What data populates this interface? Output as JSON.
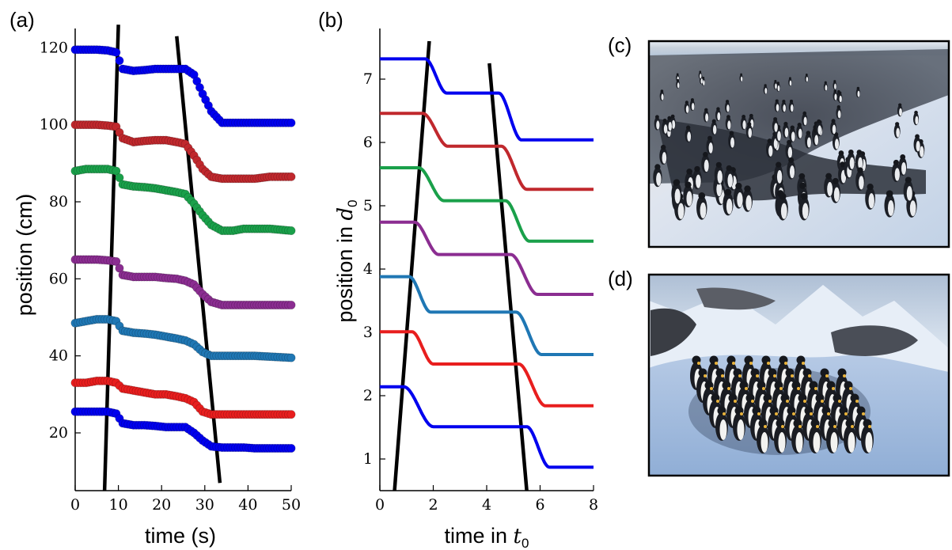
{
  "panel_labels": {
    "a": "(a)",
    "b": "(b)",
    "c": "(c)",
    "d": "(d)"
  },
  "axes_text": {
    "a_xlabel": "time (s)",
    "a_ylabel": "position (cm)",
    "b_xlabel_prefix": "time in ",
    "b_xlabel_symbol": "t",
    "b_xlabel_sub": "0",
    "b_ylabel_prefix": "position in ",
    "b_ylabel_symbol": "d",
    "b_ylabel_sub": "0"
  },
  "photos": {
    "c_description_icon": "penguin-colony-photo",
    "d_description_icon": "penguin-huddle-render"
  },
  "chart_data": [
    {
      "id": "a",
      "type": "scatter",
      "title": "",
      "xlabel": "time (s)",
      "ylabel": "position (cm)",
      "xlim": [
        0,
        50
      ],
      "ylim": [
        5,
        125
      ],
      "xticks": [
        0,
        10,
        20,
        30,
        40,
        50
      ],
      "yticks": [
        20,
        40,
        60,
        80,
        100,
        120
      ],
      "grid": false,
      "series": [
        {
          "color": "#0000ee",
          "y": [
            119.5,
            119.5,
            119.5,
            119.3,
            118.8,
            114.5,
            114.0,
            114.2,
            114.5,
            114.5,
            114.5,
            114.5,
            113.0,
            108.0,
            103.5,
            100.5,
            100.5,
            100.5,
            100.5,
            100.5,
            100.5
          ]
        },
        {
          "color": "#c0282d",
          "y": [
            100.0,
            100.0,
            100.0,
            99.8,
            99.5,
            96.5,
            95.5,
            95.8,
            96.0,
            96.0,
            95.5,
            95.0,
            92.0,
            88.5,
            86.5,
            86.0,
            86.0,
            86.0,
            86.0,
            86.5,
            86.5
          ]
        },
        {
          "color": "#1aa04a",
          "y": [
            88.0,
            88.5,
            88.5,
            88.5,
            88.0,
            84.5,
            84.0,
            83.8,
            83.5,
            83.0,
            82.5,
            82.0,
            79.5,
            76.5,
            74.0,
            72.5,
            72.5,
            73.0,
            73.0,
            73.0,
            72.5
          ]
        },
        {
          "color": "#8b2d91",
          "y": [
            65.0,
            65.0,
            65.0,
            64.8,
            64.5,
            61.0,
            60.5,
            60.5,
            60.5,
            60.2,
            60.0,
            59.5,
            58.5,
            56.0,
            54.0,
            53.2,
            53.2,
            53.2,
            53.2,
            53.2,
            53.2
          ]
        },
        {
          "color": "#1f77b4",
          "y": [
            48.5,
            49.0,
            49.5,
            49.5,
            49.0,
            46.5,
            46.0,
            45.8,
            45.5,
            45.0,
            44.5,
            44.0,
            43.0,
            41.0,
            40.0,
            40.0,
            40.0,
            40.0,
            40.0,
            39.8,
            39.5
          ]
        },
        {
          "color": "#e81e1e",
          "y": [
            33.0,
            33.0,
            33.5,
            33.5,
            33.0,
            31.5,
            31.0,
            30.5,
            30.0,
            30.0,
            29.5,
            29.0,
            28.0,
            25.5,
            24.8,
            24.8,
            24.8,
            24.8,
            24.8,
            24.8,
            24.8
          ]
        },
        {
          "color": "#0000ee",
          "y": [
            25.5,
            25.5,
            25.5,
            25.5,
            25.0,
            22.5,
            22.0,
            22.0,
            21.8,
            21.5,
            21.5,
            21.5,
            20.0,
            18.0,
            16.5,
            16.2,
            16.2,
            16.2,
            16.0,
            16.0,
            16.0
          ]
        }
      ],
      "x": [
        0,
        2.5,
        5,
        7.5,
        9.5,
        11,
        13.5,
        16,
        18.5,
        21,
        23.5,
        25.5,
        27.5,
        29.5,
        31.5,
        34,
        36.5,
        39,
        41.5,
        45,
        50
      ],
      "waves": [
        {
          "x_top": 10.0,
          "y_top": 126,
          "x_bottom": 6.8,
          "y_bottom": 5
        },
        {
          "x_top": 23.5,
          "y_top": 123,
          "x_bottom": 33.5,
          "y_bottom": 7
        }
      ]
    },
    {
      "id": "b",
      "type": "line",
      "title": "",
      "xlabel": "time in t0",
      "ylabel": "position in d0",
      "xlim": [
        0,
        8
      ],
      "ylim": [
        0.5,
        7.8
      ],
      "xticks": [
        0,
        2,
        4,
        6,
        8
      ],
      "yticks": [
        1,
        2,
        3,
        4,
        5,
        6,
        7
      ],
      "grid": false,
      "series": [
        {
          "color": "#0000ee",
          "start": 7.32,
          "mid": 6.78,
          "end": 6.04,
          "t1": 1.7,
          "t1e": 2.5,
          "t2": 4.45,
          "t2e": 5.3
        },
        {
          "color": "#c0282d",
          "start": 6.46,
          "mid": 5.94,
          "end": 5.26,
          "t1": 1.6,
          "t1e": 2.55,
          "t2": 4.55,
          "t2e": 5.5
        },
        {
          "color": "#1aa04a",
          "start": 5.6,
          "mid": 5.08,
          "end": 4.44,
          "t1": 1.45,
          "t1e": 2.4,
          "t2": 4.7,
          "t2e": 5.6
        },
        {
          "color": "#8b2d91",
          "start": 4.74,
          "mid": 4.23,
          "end": 3.6,
          "t1": 1.3,
          "t1e": 2.2,
          "t2": 4.9,
          "t2e": 5.9
        },
        {
          "color": "#1f77b4",
          "start": 3.88,
          "mid": 3.32,
          "end": 2.65,
          "t1": 1.1,
          "t1e": 1.9,
          "t2": 5.1,
          "t2e": 6.05
        },
        {
          "color": "#e81e1e",
          "start": 3.01,
          "mid": 2.5,
          "end": 1.84,
          "t1": 1.2,
          "t1e": 2.0,
          "t2": 5.2,
          "t2e": 6.2
        },
        {
          "color": "#0000ee",
          "start": 2.14,
          "mid": 1.51,
          "end": 0.87,
          "t1": 0.9,
          "t1e": 2.0,
          "t2": 5.5,
          "t2e": 6.35
        }
      ],
      "waves": [
        {
          "x_top": 1.85,
          "y_top": 7.6,
          "x_bottom": 0.55,
          "y_bottom": 0.5
        },
        {
          "x_top": 4.1,
          "y_top": 7.25,
          "x_bottom": 5.5,
          "y_bottom": 0.5
        }
      ]
    }
  ]
}
